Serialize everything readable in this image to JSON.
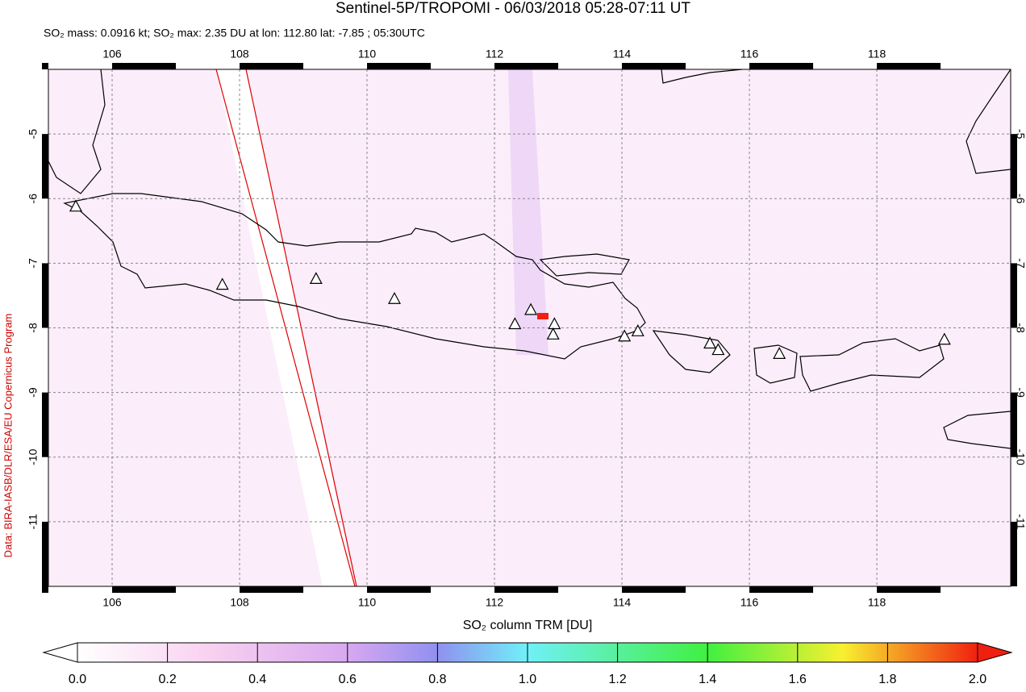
{
  "chart_data": {
    "type": "map",
    "title": "Sentinel-5P/TROPOMI - 06/03/2018 05:28-07:11 UT",
    "subtitle": "SO₂ mass: 0.0916 kt; SO₂ max: 2.35 DU at lon: 112.80 lat: -7.85 ; 05:30UTC",
    "credit": "Data: BIRA-IASB/DLR/ESA/EU Copernicus Program",
    "xlim": [
      105,
      120.1
    ],
    "xticks": [
      106,
      108,
      110,
      112,
      114,
      116,
      118
    ],
    "ylim": [
      -12,
      -4
    ],
    "yticks": [
      -5,
      -6,
      -7,
      -8,
      -9,
      -10,
      -11
    ],
    "grid": true,
    "volcanoes": {
      "lon": [
        105.43,
        107.73,
        109.2,
        110.43,
        112.32,
        112.57,
        112.94,
        112.92,
        114.04,
        114.25,
        115.38,
        115.51,
        116.47,
        119.06
      ],
      "lat": [
        -6.13,
        -7.34,
        -7.25,
        -7.56,
        -7.95,
        -7.73,
        -7.95,
        -8.11,
        -8.14,
        -8.06,
        -8.25,
        -8.35,
        -8.41,
        -8.19
      ]
    },
    "colorbar": {
      "label": "SO₂ column TRM [DU]",
      "lim": [
        0,
        2
      ],
      "ticks": [
        {
          "value": 0,
          "label": "0.0"
        },
        {
          "value": 0.2,
          "label": "0.2"
        },
        {
          "value": 0.4,
          "label": "0.4"
        },
        {
          "value": 0.6,
          "label": "0.6"
        },
        {
          "value": 0.8,
          "label": "0.8"
        },
        {
          "value": 1,
          "label": "1.0"
        },
        {
          "value": 1.2,
          "label": "1.2"
        },
        {
          "value": 1.4,
          "label": "1.4"
        },
        {
          "value": 1.6,
          "label": "1.6"
        },
        {
          "value": 1.8,
          "label": "1.8"
        },
        {
          "value": 2,
          "label": "2.0"
        }
      ]
    }
  }
}
